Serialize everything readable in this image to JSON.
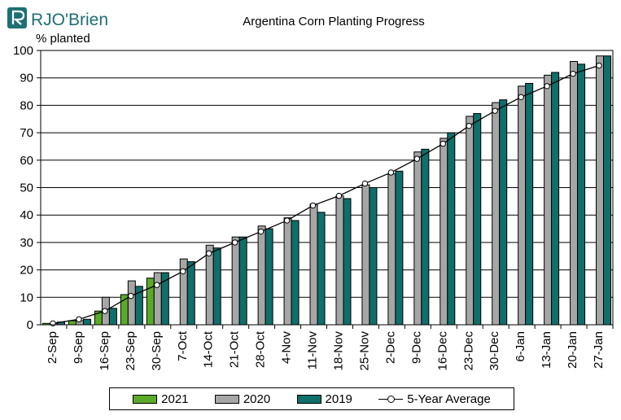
{
  "logo": {
    "text": "RJO'Brien",
    "mark": "ornate R"
  },
  "colors": {
    "s2021": "#5aaa2a",
    "s2020": "#a6a6a6",
    "s2019": "#0f6f6a",
    "avg": "#000000"
  },
  "chart_data": {
    "type": "bar",
    "title": "Argentina Corn Planting Progress",
    "ylabel": "% planted",
    "xlabel": "",
    "ylim": [
      0,
      100
    ],
    "yticks": [
      0,
      10,
      20,
      30,
      40,
      50,
      60,
      70,
      80,
      90,
      100
    ],
    "grid": true,
    "legend_position": "bottom",
    "categories": [
      "2-Sep",
      "9-Sep",
      "16-Sep",
      "23-Sep",
      "30-Sep",
      "7-Oct",
      "14-Oct",
      "21-Oct",
      "28-Oct",
      "4-Nov",
      "11-Nov",
      "18-Nov",
      "25-Nov",
      "2-Dec",
      "9-Dec",
      "16-Dec",
      "23-Dec",
      "30-Dec",
      "6-Jan",
      "13-Jan",
      "20-Jan",
      "27-Jan"
    ],
    "series": [
      {
        "name": "2021",
        "type": "bar",
        "color": "#5aaa2a",
        "values": [
          0.5,
          1.5,
          5,
          11,
          17,
          null,
          null,
          null,
          null,
          null,
          null,
          null,
          null,
          null,
          null,
          null,
          null,
          null,
          null,
          null,
          null,
          null
        ]
      },
      {
        "name": "2020",
        "type": "bar",
        "color": "#a6a6a6",
        "values": [
          0.5,
          1.5,
          10,
          16,
          19,
          24,
          29,
          32,
          36,
          39,
          44,
          47,
          51,
          55,
          63,
          68,
          76,
          81,
          87,
          91,
          96,
          98
        ]
      },
      {
        "name": "2019",
        "type": "bar",
        "color": "#0f6f6a",
        "values": [
          1,
          2,
          6,
          14,
          19,
          23,
          28,
          32,
          35,
          38,
          41,
          46,
          50,
          56,
          64,
          70,
          77,
          82,
          88,
          92,
          95,
          98
        ]
      },
      {
        "name": "5-Year Average",
        "type": "line",
        "color": "#000000",
        "values": [
          0.5,
          2,
          5,
          10.5,
          14.5,
          19.5,
          26,
          30,
          34,
          38,
          43.5,
          47,
          51.5,
          55.5,
          60.5,
          66,
          72.5,
          78,
          83,
          87,
          91.5,
          94.5
        ]
      }
    ]
  }
}
